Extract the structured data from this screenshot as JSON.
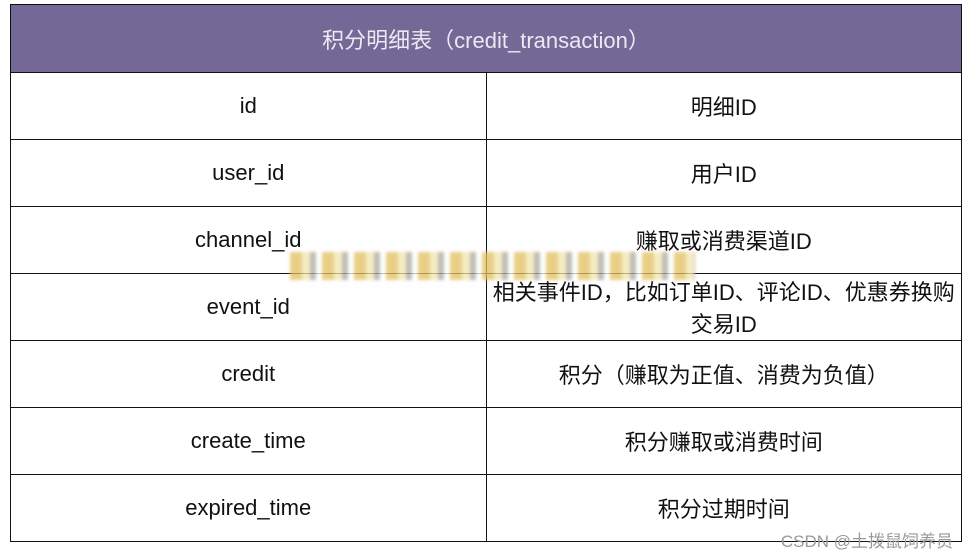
{
  "table": {
    "title": "积分明细表（credit_transaction）",
    "header_color": "#736896",
    "rows": [
      {
        "field": "id",
        "desc": "明细ID"
      },
      {
        "field": "user_id",
        "desc": "用户ID"
      },
      {
        "field": "channel_id",
        "desc": "赚取或消费渠道ID"
      },
      {
        "field": "event_id",
        "desc": "相关事件ID，比如订单ID、评论ID、优惠券换购交易ID"
      },
      {
        "field": "credit",
        "desc": "积分（赚取为正值、消费为负值）"
      },
      {
        "field": "create_time",
        "desc": "积分赚取或消费时间"
      },
      {
        "field": "expired_time",
        "desc": "积分过期时间"
      }
    ]
  },
  "watermark": "CSDN @土拨鼠饲养员"
}
